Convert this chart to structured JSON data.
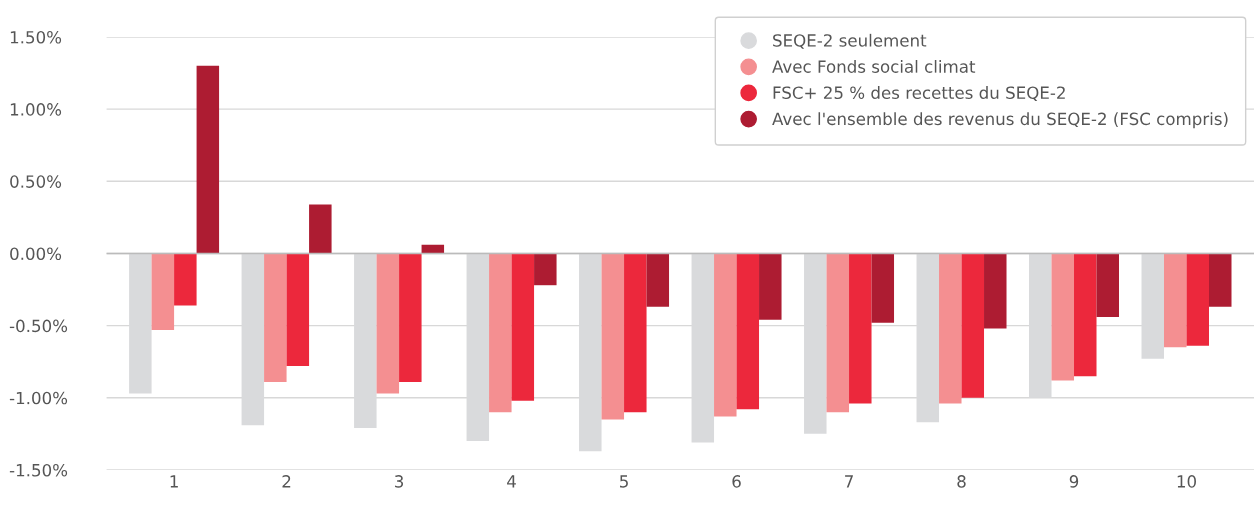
{
  "chart_data": {
    "type": "bar",
    "categories": [
      "1",
      "2",
      "3",
      "4",
      "5",
      "6",
      "7",
      "8",
      "9",
      "10"
    ],
    "series": [
      {
        "name": "SEQE-2 seulement",
        "color": "#d9dadc",
        "values": [
          -0.97,
          -1.19,
          -1.21,
          -1.3,
          -1.37,
          -1.31,
          -1.25,
          -1.17,
          -1.0,
          -0.73
        ]
      },
      {
        "name": "Avec Fonds social climat",
        "color": "#f48f91",
        "values": [
          -0.53,
          -0.89,
          -0.97,
          -1.1,
          -1.15,
          -1.13,
          -1.1,
          -1.04,
          -0.88,
          -0.65
        ]
      },
      {
        "name": "FSC+ 25 % des recettes du SEQE-2",
        "color": "#ec283c",
        "values": [
          -0.36,
          -0.78,
          -0.89,
          -1.02,
          -1.1,
          -1.08,
          -1.04,
          -1.0,
          -0.85,
          -0.64
        ]
      },
      {
        "name": "Avec l'ensemble des revenus du SEQE-2 (FSC compris)",
        "color": "#ad1c32",
        "values": [
          1.3,
          0.34,
          0.06,
          -0.22,
          -0.37,
          -0.46,
          -0.48,
          -0.52,
          -0.44,
          -0.37
        ]
      }
    ],
    "ylim": [
      -1.5,
      1.5
    ],
    "yticks": [
      {
        "value": -1.5,
        "label": "-1.50%"
      },
      {
        "value": -1.0,
        "label": "-1.00%"
      },
      {
        "value": -0.5,
        "label": "-0.50%"
      },
      {
        "value": 0,
        "label": "0.00%"
      },
      {
        "value": 0.5,
        "label": "0.50%"
      },
      {
        "value": 1.0,
        "label": "1.00%"
      },
      {
        "value": 1.5,
        "label": "1.50%"
      }
    ],
    "grid": "y",
    "legend": "top right"
  }
}
